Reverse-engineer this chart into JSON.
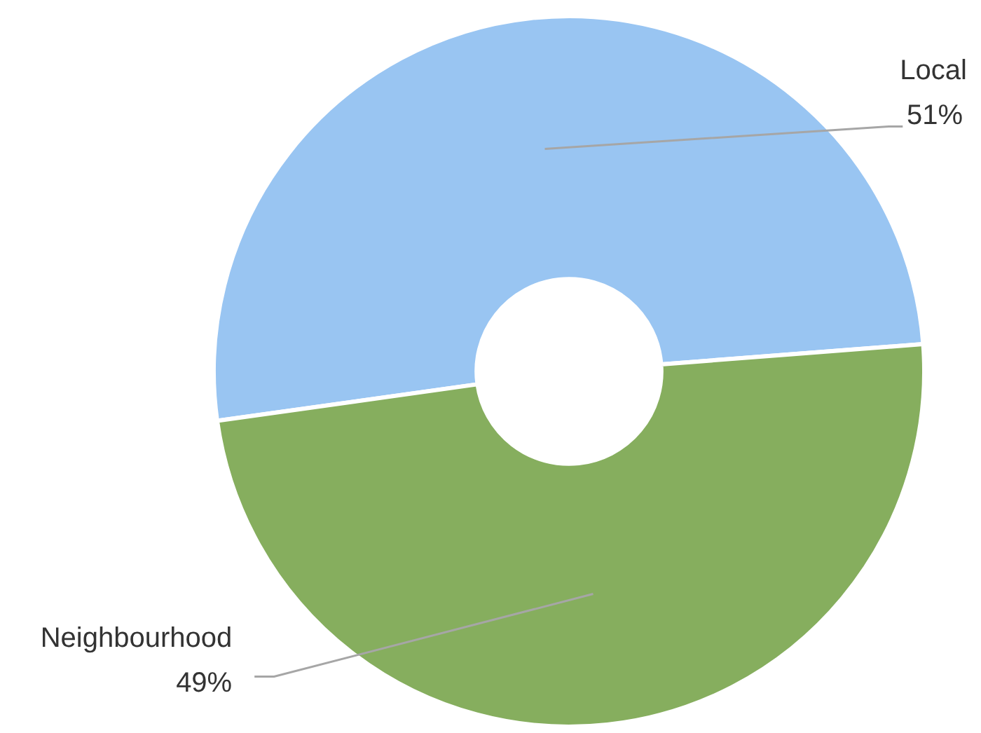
{
  "chart_data": {
    "type": "donut",
    "categories": [
      "Local",
      "Neighbourhood"
    ],
    "values": [
      51,
      49
    ],
    "colors": [
      "#99c5f2",
      "#86ae5e"
    ],
    "value_labels": [
      "51%",
      "49%"
    ]
  }
}
